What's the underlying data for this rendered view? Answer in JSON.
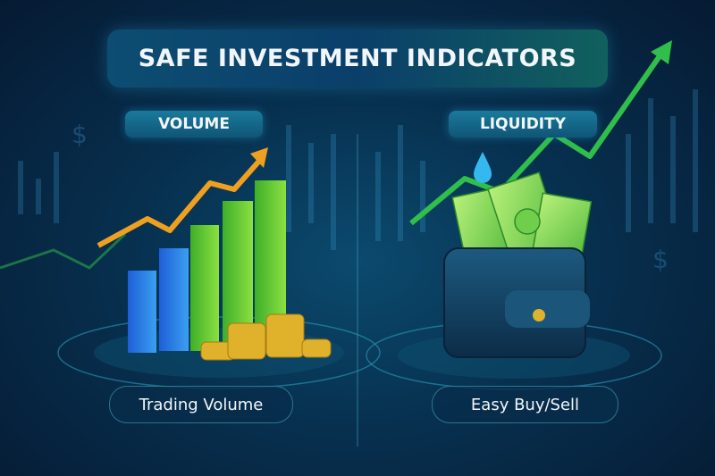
{
  "title": "SAFE INVESTMENT INDICATORS",
  "left_panel": {
    "heading": "VOLUME",
    "caption": "Trading Volume",
    "icons": [
      "bar-chart-icon",
      "up-arrow-icon",
      "coin-stack-icon"
    ]
  },
  "right_panel": {
    "heading": "LIQUIDITY",
    "caption": "Easy Buy/Sell",
    "icons": [
      "water-drop-icon",
      "wallet-icon",
      "banknote-icon"
    ]
  },
  "colors": {
    "background": "#07304f",
    "accent_teal": "#1a7a9c",
    "arrow_orange": "#f0a020",
    "arrow_green": "#2fbf4a",
    "coin_gold": "#e0b22c"
  }
}
